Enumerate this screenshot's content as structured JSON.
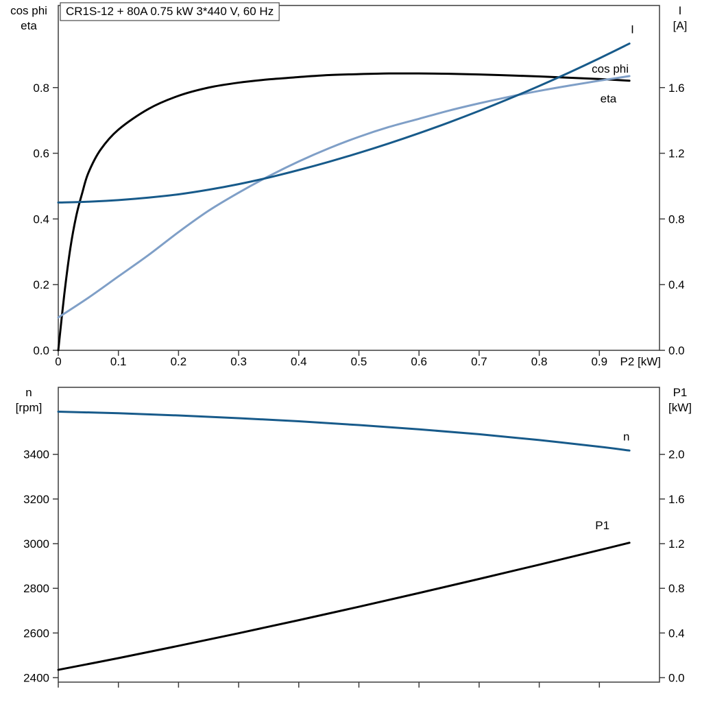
{
  "title": "CR1S-12 + 80A   0.75 kW   3*440 V, 60 Hz",
  "colors": {
    "dark_blue": "#175a8a",
    "light_blue": "#7f9fc7",
    "black": "#000000",
    "axis": "#3c3c3c",
    "background": "#ffffff"
  },
  "chart_data": [
    {
      "type": "line",
      "title": "CR1S-12 + 80A   0.75 kW   3*440 V, 60 Hz",
      "xlabel": "P2 [kW]",
      "xlim": [
        0,
        1.0
      ],
      "x_ticks": [
        0,
        0.1,
        0.2,
        0.3,
        0.4,
        0.5,
        0.6,
        0.7,
        0.8,
        0.9
      ],
      "x_tick_labels": [
        "0",
        "0.1",
        "0.2",
        "0.3",
        "0.4",
        "0.5",
        "0.6",
        "0.7",
        "0.8",
        "0.9"
      ],
      "left_axis": {
        "title_lines": [
          "cos phi",
          "eta"
        ],
        "lim": [
          0,
          1.05
        ],
        "ticks": [
          0,
          0.2,
          0.4,
          0.6,
          0.8
        ],
        "decimals": 1
      },
      "right_axis": {
        "title_lines": [
          "I",
          "[A]"
        ],
        "lim": [
          0,
          2.1
        ],
        "ticks": [
          0,
          0.4,
          0.8,
          1.2,
          1.6
        ],
        "decimals": 1
      },
      "series": [
        {
          "name": "eta",
          "axis": "left",
          "color": "#000000",
          "label_pos": [
            0.915,
            0.755
          ],
          "points": [
            [
              0,
              0
            ],
            [
              0.01,
              0.17
            ],
            [
              0.02,
              0.31
            ],
            [
              0.03,
              0.41
            ],
            [
              0.04,
              0.48
            ],
            [
              0.05,
              0.54
            ],
            [
              0.07,
              0.61
            ],
            [
              0.1,
              0.672
            ],
            [
              0.15,
              0.735
            ],
            [
              0.2,
              0.775
            ],
            [
              0.25,
              0.8
            ],
            [
              0.3,
              0.815
            ],
            [
              0.35,
              0.825
            ],
            [
              0.4,
              0.832
            ],
            [
              0.45,
              0.838
            ],
            [
              0.5,
              0.841
            ],
            [
              0.55,
              0.843
            ],
            [
              0.6,
              0.843
            ],
            [
              0.65,
              0.842
            ],
            [
              0.7,
              0.84
            ],
            [
              0.75,
              0.837
            ],
            [
              0.8,
              0.834
            ],
            [
              0.85,
              0.83
            ],
            [
              0.9,
              0.826
            ],
            [
              0.95,
              0.821
            ]
          ]
        },
        {
          "name": "cos phi",
          "axis": "left",
          "color": "#7f9fc7",
          "label_pos": [
            0.918,
            0.845
          ],
          "points": [
            [
              0,
              0.1
            ],
            [
              0.05,
              0.16
            ],
            [
              0.1,
              0.225
            ],
            [
              0.15,
              0.29
            ],
            [
              0.2,
              0.36
            ],
            [
              0.25,
              0.425
            ],
            [
              0.3,
              0.48
            ],
            [
              0.35,
              0.53
            ],
            [
              0.4,
              0.575
            ],
            [
              0.45,
              0.615
            ],
            [
              0.5,
              0.65
            ],
            [
              0.55,
              0.68
            ],
            [
              0.6,
              0.705
            ],
            [
              0.65,
              0.73
            ],
            [
              0.7,
              0.752
            ],
            [
              0.75,
              0.772
            ],
            [
              0.8,
              0.79
            ],
            [
              0.85,
              0.806
            ],
            [
              0.9,
              0.821
            ],
            [
              0.95,
              0.835
            ]
          ]
        },
        {
          "name": "I",
          "axis": "right",
          "color": "#175a8a",
          "label_pos": [
            0.955,
            1.93
          ],
          "points": [
            [
              0,
              0.9
            ],
            [
              0.05,
              0.905
            ],
            [
              0.1,
              0.915
            ],
            [
              0.15,
              0.93
            ],
            [
              0.2,
              0.95
            ],
            [
              0.25,
              0.978
            ],
            [
              0.3,
              1.012
            ],
            [
              0.35,
              1.052
            ],
            [
              0.4,
              1.098
            ],
            [
              0.45,
              1.148
            ],
            [
              0.5,
              1.202
            ],
            [
              0.55,
              1.26
            ],
            [
              0.6,
              1.322
            ],
            [
              0.65,
              1.388
            ],
            [
              0.7,
              1.458
            ],
            [
              0.75,
              1.532
            ],
            [
              0.8,
              1.61
            ],
            [
              0.85,
              1.692
            ],
            [
              0.9,
              1.778
            ],
            [
              0.95,
              1.868
            ]
          ]
        }
      ]
    },
    {
      "type": "line",
      "title": "",
      "xlabel": "",
      "xlim": [
        0,
        1.0
      ],
      "x_ticks": [
        0,
        0.1,
        0.2,
        0.3,
        0.4,
        0.5,
        0.6,
        0.7,
        0.8,
        0.9
      ],
      "x_tick_labels": [],
      "left_axis": {
        "title_lines": [
          "n",
          "[rpm]"
        ],
        "lim": [
          2380,
          3700
        ],
        "ticks": [
          2400,
          2600,
          2800,
          3000,
          3200,
          3400
        ],
        "decimals": 0
      },
      "right_axis": {
        "title_lines": [
          "P1",
          "[kW]"
        ],
        "lim": [
          -0.04,
          2.6
        ],
        "ticks": [
          0,
          0.4,
          0.8,
          1.2,
          1.6,
          2.0
        ],
        "decimals": 1
      },
      "series": [
        {
          "name": "n",
          "axis": "left",
          "color": "#175a8a",
          "label_pos": [
            0.945,
            3462
          ],
          "points": [
            [
              0,
              3591
            ],
            [
              0.1,
              3584
            ],
            [
              0.2,
              3574
            ],
            [
              0.3,
              3562
            ],
            [
              0.4,
              3548
            ],
            [
              0.5,
              3531
            ],
            [
              0.6,
              3512
            ],
            [
              0.7,
              3490
            ],
            [
              0.8,
              3464
            ],
            [
              0.9,
              3434
            ],
            [
              0.95,
              3417
            ]
          ]
        },
        {
          "name": "P1",
          "axis": "right",
          "color": "#000000",
          "label_pos": [
            0.905,
            1.33
          ],
          "points": [
            [
              0,
              0.07
            ],
            [
              0.1,
              0.175
            ],
            [
              0.2,
              0.285
            ],
            [
              0.3,
              0.398
            ],
            [
              0.4,
              0.515
            ],
            [
              0.5,
              0.635
            ],
            [
              0.6,
              0.758
            ],
            [
              0.7,
              0.884
            ],
            [
              0.8,
              1.012
            ],
            [
              0.9,
              1.142
            ],
            [
              0.95,
              1.208
            ]
          ]
        }
      ]
    }
  ]
}
